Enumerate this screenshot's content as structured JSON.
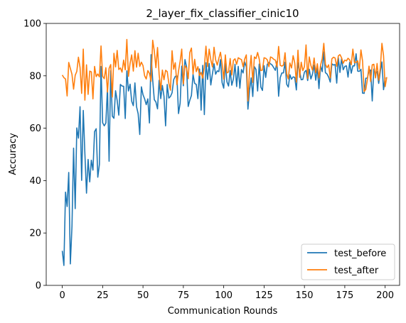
{
  "chart_data": {
    "type": "line",
    "title": "2_layer_fix_classifier_cinic10",
    "xlabel": "Communication Rounds",
    "ylabel": "Accuracy",
    "xlim": [
      -9.95,
      208.95
    ],
    "ylim": [
      0,
      100
    ],
    "xticks": [
      0,
      25,
      50,
      75,
      100,
      125,
      150,
      175,
      200
    ],
    "yticks": [
      0,
      20,
      40,
      60,
      80,
      100
    ],
    "grid": false,
    "legend_position": "lower-right",
    "series": [
      {
        "name": "test_before",
        "color": "#1f77b4",
        "x_start": 0,
        "values": [
          13.2,
          7.6,
          35.6,
          30.1,
          43.1,
          8.2,
          22.5,
          52.4,
          29.3,
          60.1,
          56.2,
          68.2,
          40.1,
          66.8,
          50.3,
          35.2,
          48.1,
          39.5,
          47.8,
          44.0,
          58.7,
          59.8,
          41.3,
          46.2,
          83.6,
          62.1,
          60.9,
          62.0,
          75.5,
          47.4,
          82.0,
          64.6,
          63.8,
          74.3,
          70.6,
          65.0,
          76.7,
          76.1,
          76.0,
          63.7,
          81.9,
          74.2,
          76.8,
          70.3,
          68.6,
          77.3,
          68.2,
          65.5,
          57.6,
          75.8,
          72.8,
          71.2,
          69.0,
          71.2,
          62.0,
          88.1,
          78.4,
          70.9,
          70.0,
          67.4,
          78.3,
          71.3,
          76.3,
          72.2,
          60.9,
          76.7,
          71.5,
          72.1,
          73.5,
          78.5,
          79.8,
          79.9,
          65.6,
          69.5,
          83.7,
          76.2,
          86.2,
          83.4,
          68.3,
          70.7,
          72.5,
          80.6,
          77.1,
          76.7,
          71.3,
          82.6,
          66.9,
          84.0,
          65.2,
          85.0,
          78.6,
          84.7,
          76.5,
          80.7,
          84.6,
          80.6,
          81.9,
          81.6,
          86.2,
          77.4,
          75.3,
          84.7,
          77.7,
          76.1,
          82.0,
          76.4,
          78.8,
          84.4,
          75.9,
          83.6,
          75.3,
          82.4,
          81.1,
          85.3,
          83.4,
          67.3,
          74.5,
          79.2,
          72.1,
          83.5,
          82.4,
          74.2,
          84.5,
          75.7,
          74.4,
          83.9,
          79.4,
          84.4,
          85.1,
          84.6,
          84.1,
          83.1,
          82.1,
          85.4,
          72.2,
          79.3,
          81.1,
          81.1,
          85.2,
          76.8,
          75.7,
          80.4,
          78.7,
          79.6,
          79.4,
          74.6,
          85.0,
          81.9,
          78.5,
          78.6,
          81.4,
          82.1,
          78.2,
          82.5,
          78.8,
          80.7,
          84.1,
          78.3,
          82.9,
          75.1,
          83.9,
          81.6,
          89.1,
          81.2,
          80.7,
          79.5,
          77.6,
          84.6,
          84.1,
          84.3,
          77.2,
          86.9,
          81.3,
          86.6,
          82.3,
          83.6,
          83.8,
          79.5,
          85.1,
          81.0,
          83.8,
          83.8,
          88.4,
          81.8,
          81.7,
          82.5,
          73.4,
          73.3,
          79.1,
          79.1,
          82.1,
          82.2,
          70.4,
          82.6,
          80.7,
          81.7,
          77.1,
          81.6,
          85.3,
          74.7,
          79.4
        ]
      },
      {
        "name": "test_after",
        "color": "#ff7f0e",
        "x_start": 0,
        "values": [
          80.3,
          79.3,
          78.8,
          72.3,
          85.1,
          82.8,
          80.6,
          74.9,
          80.2,
          81.7,
          87.1,
          83.2,
          73.3,
          90.2,
          70.7,
          84.2,
          72.9,
          81.8,
          81.5,
          71.2,
          83.6,
          79.7,
          80.7,
          79.6,
          91.4,
          79.8,
          78.9,
          83.1,
          73.8,
          82.8,
          84.3,
          71.9,
          88.6,
          83.4,
          89.7,
          82.4,
          83.0,
          81.4,
          86.0,
          82.3,
          93.9,
          79.8,
          84.8,
          88.0,
          81.8,
          89.6,
          83.3,
          88.6,
          83.6,
          85.2,
          83.9,
          80.0,
          78.8,
          82.0,
          80.9,
          77.9,
          93.6,
          89.4,
          83.1,
          90.8,
          80.5,
          74.5,
          82.2,
          78.5,
          82.1,
          81.6,
          77.2,
          74.5,
          89.6,
          82.5,
          85.0,
          76.6,
          81.8,
          85.5,
          90.2,
          76.9,
          83.8,
          83.0,
          78.9,
          88.9,
          90.6,
          80.7,
          86.3,
          81.6,
          83.5,
          80.1,
          81.3,
          79.1,
          83.3,
          91.3,
          83.5,
          90.2,
          86.1,
          83.4,
          90.9,
          86.1,
          84.1,
          86.7,
          89.0,
          84.6,
          78.7,
          88.0,
          81.1,
          81.5,
          86.6,
          80.3,
          85.9,
          86.5,
          84.4,
          86.9,
          86.5,
          86.2,
          83.5,
          86.4,
          88.0,
          70.4,
          81.9,
          87.8,
          77.5,
          87.2,
          86.6,
          88.9,
          86.4,
          82.0,
          82.2,
          86.9,
          86.7,
          86.1,
          83.5,
          87.2,
          86.9,
          86.3,
          86.0,
          83.4,
          91.2,
          84.0,
          83.7,
          84.1,
          88.8,
          80.8,
          78.8,
          84.9,
          83.0,
          87.7,
          84.9,
          77.6,
          89.8,
          79.4,
          85.2,
          82.0,
          83.5,
          91.8,
          79.0,
          87.2,
          83.9,
          82.2,
          86.8,
          81.2,
          84.6,
          79.2,
          84.1,
          86.5,
          92.4,
          84.4,
          83.1,
          84.2,
          79.2,
          86.5,
          87.1,
          86.8,
          83.6,
          87.6,
          88.1,
          86.9,
          84.8,
          86.0,
          85.7,
          86.7,
          86.1,
          84.2,
          90.2,
          85.0,
          85.2,
          85.7,
          82.6,
          89.9,
          85.7,
          74.0,
          74.8,
          78.6,
          83.7,
          77.8,
          84.2,
          84.4,
          79.2,
          84.7,
          78.3,
          83.0,
          92.4,
          87.7,
          75.9,
          79.5
        ]
      }
    ]
  }
}
